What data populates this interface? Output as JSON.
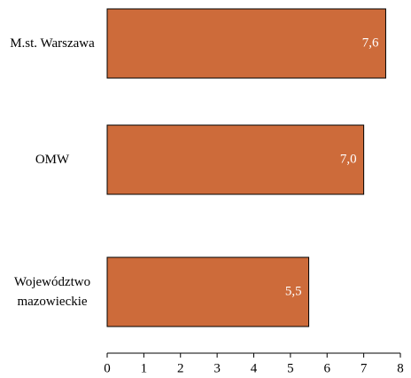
{
  "chart_data": {
    "type": "hbar",
    "categories": [
      "M.st. Warszawa",
      "OMW",
      "Województwo mazowieckie"
    ],
    "values": [
      7.6,
      7.0,
      5.5
    ],
    "value_labels": [
      "7,6",
      "7,0",
      "5,5"
    ],
    "color": "#cd6b3a",
    "xlim": [
      0,
      8
    ],
    "xticks": [
      0,
      1,
      2,
      3,
      4,
      5,
      6,
      7,
      8
    ]
  }
}
